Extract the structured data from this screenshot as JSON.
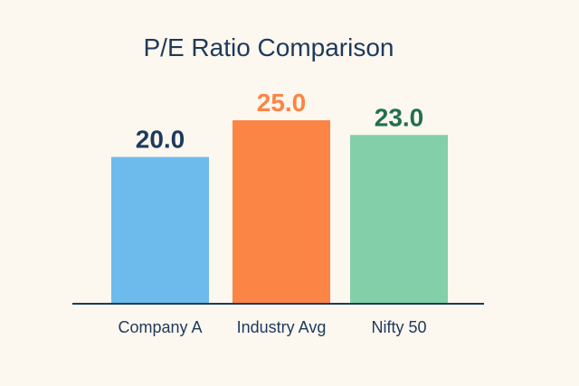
{
  "colors": {
    "background": "#fcf7ef",
    "title": "#1d3a5c",
    "axis": "#1d3a5c"
  },
  "chart_data": {
    "type": "bar",
    "title": "P/E Ratio Comparison",
    "xlabel": "",
    "ylabel": "",
    "categories": [
      "Company A",
      "Industry Avg",
      "Nifty 50"
    ],
    "values": [
      20.0,
      25.0,
      23.0
    ],
    "value_labels": [
      "20.0",
      "25.0",
      "23.0"
    ],
    "bar_colors": [
      "#6dbbec",
      "#fb8544",
      "#82cfa9"
    ],
    "label_colors": [
      "#1d3a5c",
      "#fb8544",
      "#22704a"
    ],
    "ylim": [
      0,
      25.5
    ],
    "grid": false,
    "legend": "none"
  }
}
